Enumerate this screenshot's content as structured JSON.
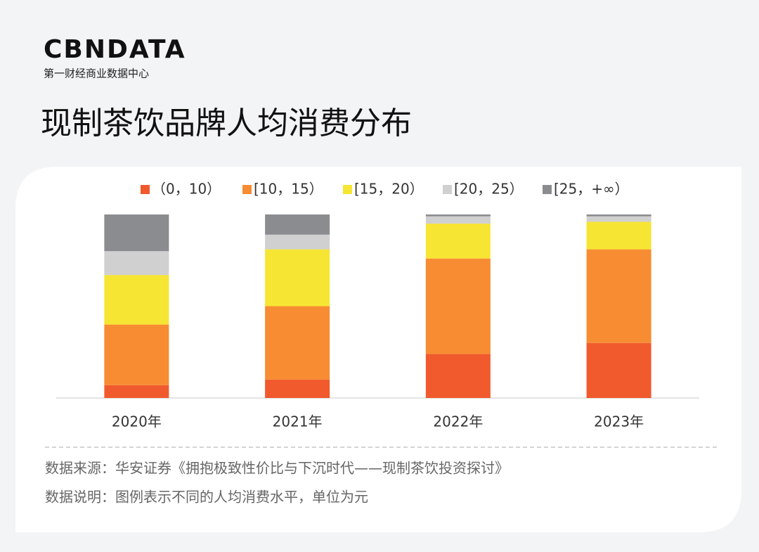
{
  "header": {
    "logo": "CBNDATA",
    "logo_subtitle": "第一财经商业数据中心"
  },
  "chart_data": {
    "type": "stacked-bar",
    "title": "现制茶饮品牌人均消费分布",
    "categories": [
      "2020年",
      "2021年",
      "2022年",
      "2023年"
    ],
    "series": [
      {
        "name": "（0，10）",
        "color": "#f05a2d",
        "values": [
          7,
          10,
          24,
          30
        ]
      },
      {
        "name": "[10，15）",
        "color": "#f78c32",
        "values": [
          33,
          40,
          52,
          51
        ]
      },
      {
        "name": "[15，20）",
        "color": "#f7e533",
        "values": [
          27,
          31,
          19,
          15
        ]
      },
      {
        "name": "[20，25）",
        "color": "#d0d0d0",
        "values": [
          13,
          8,
          4,
          3
        ]
      },
      {
        "name": "[25，+∞）",
        "color": "#8a8c8f",
        "values": [
          20,
          11,
          1,
          1
        ]
      }
    ],
    "ylim": [
      0,
      100
    ]
  },
  "footer": {
    "source": "数据来源：华安证券《拥抱极致性价比与下沉时代——现制茶饮投资探讨》",
    "note": "数据说明：图例表示不同的人均消费水平，单位为元"
  }
}
